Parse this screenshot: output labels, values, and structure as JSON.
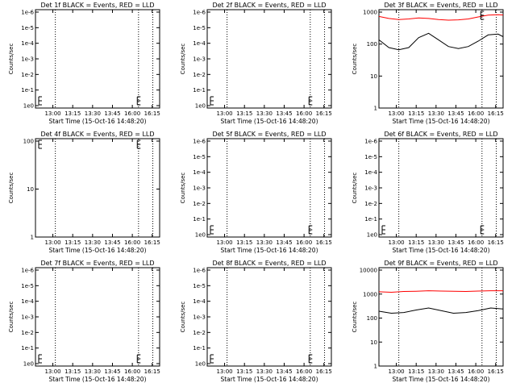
{
  "chart_data": [
    {
      "type": "line",
      "title": "Det 1f BLACK = Events, RED = LLD",
      "xlabel": "Start Time (15-Oct-16 14:48:20)",
      "ylabel": "Counts/sec",
      "scale": "log",
      "ylim": [
        1,
        1e-06
      ],
      "yticks": [
        "1e-6",
        "1e-5",
        "1e-4",
        "1e-3",
        "1e-2",
        "1e-1",
        "1e0"
      ],
      "xticks": [
        "13:00",
        "13:15",
        "13:30",
        "13:45",
        "16:00",
        "16:15"
      ],
      "series": [],
      "markers": [
        "left",
        "mid"
      ]
    },
    {
      "type": "line",
      "title": "Det 2f BLACK = Events, RED = LLD",
      "xlabel": "Start Time (15-Oct-16 14:48:20)",
      "ylabel": "Counts/sec",
      "scale": "log",
      "ylim": [
        1,
        1e-06
      ],
      "yticks": [
        "1e-6",
        "1e-5",
        "1e-4",
        "1e-3",
        "1e-2",
        "1e-1",
        "1e0"
      ],
      "xticks": [
        "13:00",
        "13:15",
        "13:30",
        "13:45",
        "16:00",
        "16:15"
      ],
      "series": [],
      "markers": [
        "left",
        "mid"
      ]
    },
    {
      "type": "line",
      "title": "Det 3f BLACK = Events, RED = LLD",
      "xlabel": "Start Time (15-Oct-16 14:48:20)",
      "ylabel": "Counts/sec",
      "scale": "log",
      "ylim": [
        1,
        1000
      ],
      "yticks": [
        "1",
        "10",
        "100",
        "1000"
      ],
      "xticks": [
        "13:00",
        "13:15",
        "13:30",
        "13:45",
        "16:00",
        "16:15"
      ],
      "series": [
        {
          "color": "#ff0000",
          "x": [
            0,
            0.08,
            0.16,
            0.24,
            0.32,
            0.4,
            0.48,
            0.56,
            0.64,
            0.72,
            0.8,
            0.88,
            0.96,
            1.0
          ],
          "values": [
            620,
            540,
            500,
            520,
            560,
            540,
            500,
            480,
            490,
            520,
            600,
            680,
            700,
            690
          ]
        },
        {
          "color": "#000000",
          "x": [
            0,
            0.08,
            0.16,
            0.24,
            0.32,
            0.4,
            0.48,
            0.56,
            0.64,
            0.72,
            0.8,
            0.88,
            0.96,
            1.0
          ],
          "values": [
            120,
            70,
            60,
            70,
            140,
            190,
            120,
            75,
            65,
            75,
            110,
            170,
            180,
            150
          ]
        }
      ],
      "markers": [
        "top-right"
      ]
    },
    {
      "type": "line",
      "title": "Det 4f BLACK = Events, RED = LLD",
      "xlabel": "Start Time (15-Oct-16 14:48:20)",
      "ylabel": "Counts/sec",
      "scale": "log",
      "ylim": [
        1,
        100
      ],
      "yticks": [
        "1",
        "10",
        "100"
      ],
      "xticks": [
        "13:00",
        "13:15",
        "13:30",
        "13:45",
        "16:00",
        "16:15"
      ],
      "series": [],
      "markers": [
        "top-left",
        "top-mid"
      ]
    },
    {
      "type": "line",
      "title": "Det 5f BLACK = Events, RED = LLD",
      "xlabel": "Start Time (15-Oct-16 14:48:20)",
      "ylabel": "Counts/sec",
      "scale": "log",
      "ylim": [
        1,
        1e-06
      ],
      "yticks": [
        "1e-6",
        "1e-5",
        "1e-4",
        "1e-3",
        "1e-2",
        "1e-1",
        "1e0"
      ],
      "xticks": [
        "13:00",
        "13:15",
        "13:30",
        "13:45",
        "16:00",
        "16:15"
      ],
      "series": [],
      "markers": [
        "left",
        "mid"
      ]
    },
    {
      "type": "line",
      "title": "Det 6f BLACK = Events, RED = LLD",
      "xlabel": "Start Time (15-Oct-16 14:48:20)",
      "ylabel": "Counts/sec",
      "scale": "log",
      "ylim": [
        1,
        1e-06
      ],
      "yticks": [
        "1e-6",
        "1e-5",
        "1e-4",
        "1e-3",
        "1e-2",
        "1e-1",
        "1e0"
      ],
      "xticks": [
        "13:00",
        "13:15",
        "13:30",
        "13:45",
        "16:00",
        "16:15"
      ],
      "series": [],
      "markers": [
        "left",
        "mid"
      ]
    },
    {
      "type": "line",
      "title": "Det 7f BLACK = Events, RED = LLD",
      "xlabel": "Start Time (15-Oct-16 14:48:20)",
      "ylabel": "Counts/sec",
      "scale": "log",
      "ylim": [
        1,
        1e-06
      ],
      "yticks": [
        "1e-6",
        "1e-5",
        "1e-4",
        "1e-3",
        "1e-2",
        "1e-1",
        "1e0"
      ],
      "xticks": [
        "13:00",
        "13:15",
        "13:30",
        "13:45",
        "16:00",
        "16:15"
      ],
      "series": [],
      "markers": [
        "left",
        "mid"
      ]
    },
    {
      "type": "line",
      "title": "Det 8f BLACK = Events, RED = LLD",
      "xlabel": "Start Time (15-Oct-16 14:48:20)",
      "ylabel": "Counts/sec",
      "scale": "log",
      "ylim": [
        1,
        1e-06
      ],
      "yticks": [
        "1e-6",
        "1e-5",
        "1e-4",
        "1e-3",
        "1e-2",
        "1e-1",
        "1e0"
      ],
      "xticks": [
        "13:00",
        "13:15",
        "13:30",
        "13:45",
        "16:00",
        "16:15"
      ],
      "series": [],
      "markers": [
        "left",
        "mid"
      ]
    },
    {
      "type": "line",
      "title": "Det 9f BLACK = Events, RED = LLD",
      "xlabel": "Start Time (15-Oct-16 14:48:20)",
      "ylabel": "Counts/sec",
      "scale": "log",
      "ylim": [
        1,
        10000
      ],
      "yticks": [
        "1",
        "10",
        "100",
        "1000",
        "10000"
      ],
      "xticks": [
        "13:00",
        "13:15",
        "13:30",
        "13:45",
        "16:00",
        "16:15"
      ],
      "series": [
        {
          "color": "#ff0000",
          "x": [
            0,
            0.1,
            0.2,
            0.3,
            0.4,
            0.5,
            0.6,
            0.7,
            0.8,
            0.9,
            1.0
          ],
          "values": [
            1050,
            1000,
            1080,
            1100,
            1150,
            1120,
            1100,
            1080,
            1120,
            1150,
            1150
          ]
        },
        {
          "color": "#000000",
          "x": [
            0,
            0.1,
            0.2,
            0.3,
            0.4,
            0.5,
            0.6,
            0.7,
            0.8,
            0.9,
            1.0
          ],
          "values": [
            170,
            140,
            150,
            190,
            230,
            180,
            140,
            150,
            180,
            230,
            210
          ]
        }
      ],
      "markers": []
    }
  ]
}
